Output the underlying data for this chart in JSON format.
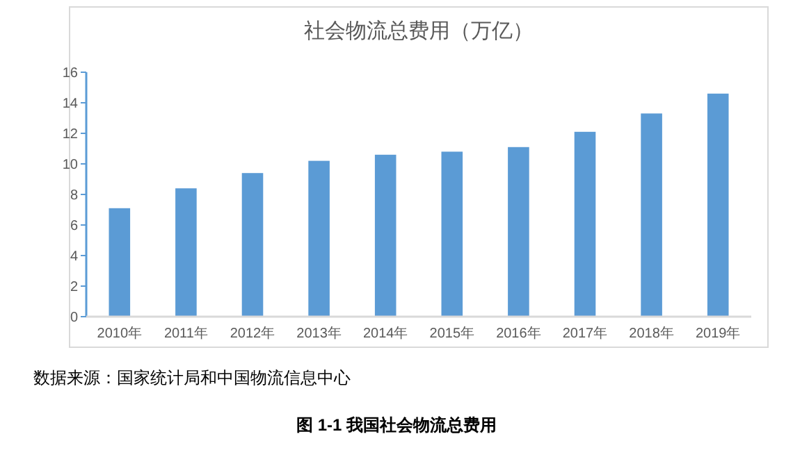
{
  "chart_data": {
    "type": "bar",
    "title": "社会物流总费用（万亿）",
    "categories": [
      "2010年",
      "2011年",
      "2012年",
      "2013年",
      "2014年",
      "2015年",
      "2016年",
      "2017年",
      "2018年",
      "2019年"
    ],
    "values": [
      7.1,
      8.4,
      9.4,
      10.2,
      10.6,
      10.8,
      11.1,
      12.1,
      13.3,
      14.6
    ],
    "color": "#5b9bd5",
    "ylim": [
      0,
      16
    ],
    "yticks": [
      0,
      2,
      4,
      6,
      8,
      10,
      12,
      14,
      16
    ],
    "grid": false,
    "annotations": [
      "数据来源：国家统计局和中国物流信息中心",
      "图 1-1  我国社会物流总费用"
    ]
  }
}
